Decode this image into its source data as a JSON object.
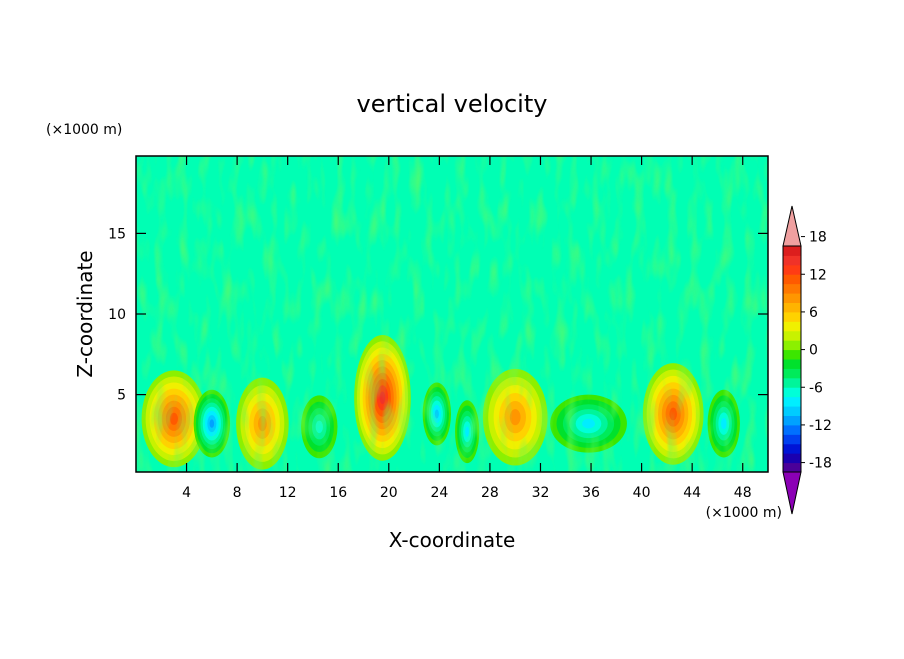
{
  "chart_data": {
    "type": "heatmap",
    "title": "vertical velocity",
    "xlabel": "X-coordinate",
    "ylabel": "Z-coordinate",
    "x_unit": "(×1000 m)",
    "y_unit": "(×1000 m)",
    "xlim": [
      0,
      50
    ],
    "ylim": [
      0.2,
      19.8
    ],
    "x_ticks": [
      4,
      8,
      12,
      16,
      20,
      24,
      28,
      32,
      36,
      40,
      44,
      48
    ],
    "y_ticks": [
      5,
      10,
      15
    ],
    "colorbar": {
      "min": -21,
      "max": 21,
      "step": 1.5,
      "labels": [
        18,
        12,
        6,
        0,
        -6,
        -12,
        -18
      ],
      "level_colors": [
        "#8B00B5",
        "#4B0099",
        "#1A00B0",
        "#0014D6",
        "#0040F0",
        "#0070FF",
        "#00A2FF",
        "#00CCFF",
        "#00EEFF",
        "#00FFD8",
        "#00F59A",
        "#00EB5A",
        "#00E12C",
        "#3CE600",
        "#8CF000",
        "#C8F200",
        "#F0F000",
        "#FFD200",
        "#FFB400",
        "#FF9600",
        "#FF7800",
        "#FF5A00",
        "#FF3C14",
        "#F03228",
        "#DC1E1E",
        "#F0A0A0"
      ]
    },
    "cells": [
      {
        "x": 3,
        "z": 3.5,
        "w": 12,
        "sx": 1.6,
        "sz": 2.0
      },
      {
        "x": 6,
        "z": 3.2,
        "w": -12,
        "sx": 0.9,
        "sz": 1.4
      },
      {
        "x": 10,
        "z": 3.2,
        "w": 9,
        "sx": 1.3,
        "sz": 1.9
      },
      {
        "x": 14.5,
        "z": 3,
        "w": -8,
        "sx": 0.9,
        "sz": 1.3
      },
      {
        "x": 19.5,
        "z": 4.8,
        "w": 15,
        "sx": 1.4,
        "sz": 2.6
      },
      {
        "x": 23.8,
        "z": 3.8,
        "w": -11,
        "sx": 0.7,
        "sz": 1.3
      },
      {
        "x": 26.2,
        "z": 2.7,
        "w": -9,
        "sx": 0.6,
        "sz": 1.3
      },
      {
        "x": 30,
        "z": 3.6,
        "w": 10,
        "sx": 1.6,
        "sz": 2.0
      },
      {
        "x": 35.8,
        "z": 3.2,
        "w": -10,
        "sx": 1.9,
        "sz": 1.2
      },
      {
        "x": 42.5,
        "z": 3.8,
        "w": 12,
        "sx": 1.5,
        "sz": 2.1
      },
      {
        "x": 46.5,
        "z": 3.2,
        "w": -10,
        "sx": 0.8,
        "sz": 1.4
      }
    ]
  }
}
